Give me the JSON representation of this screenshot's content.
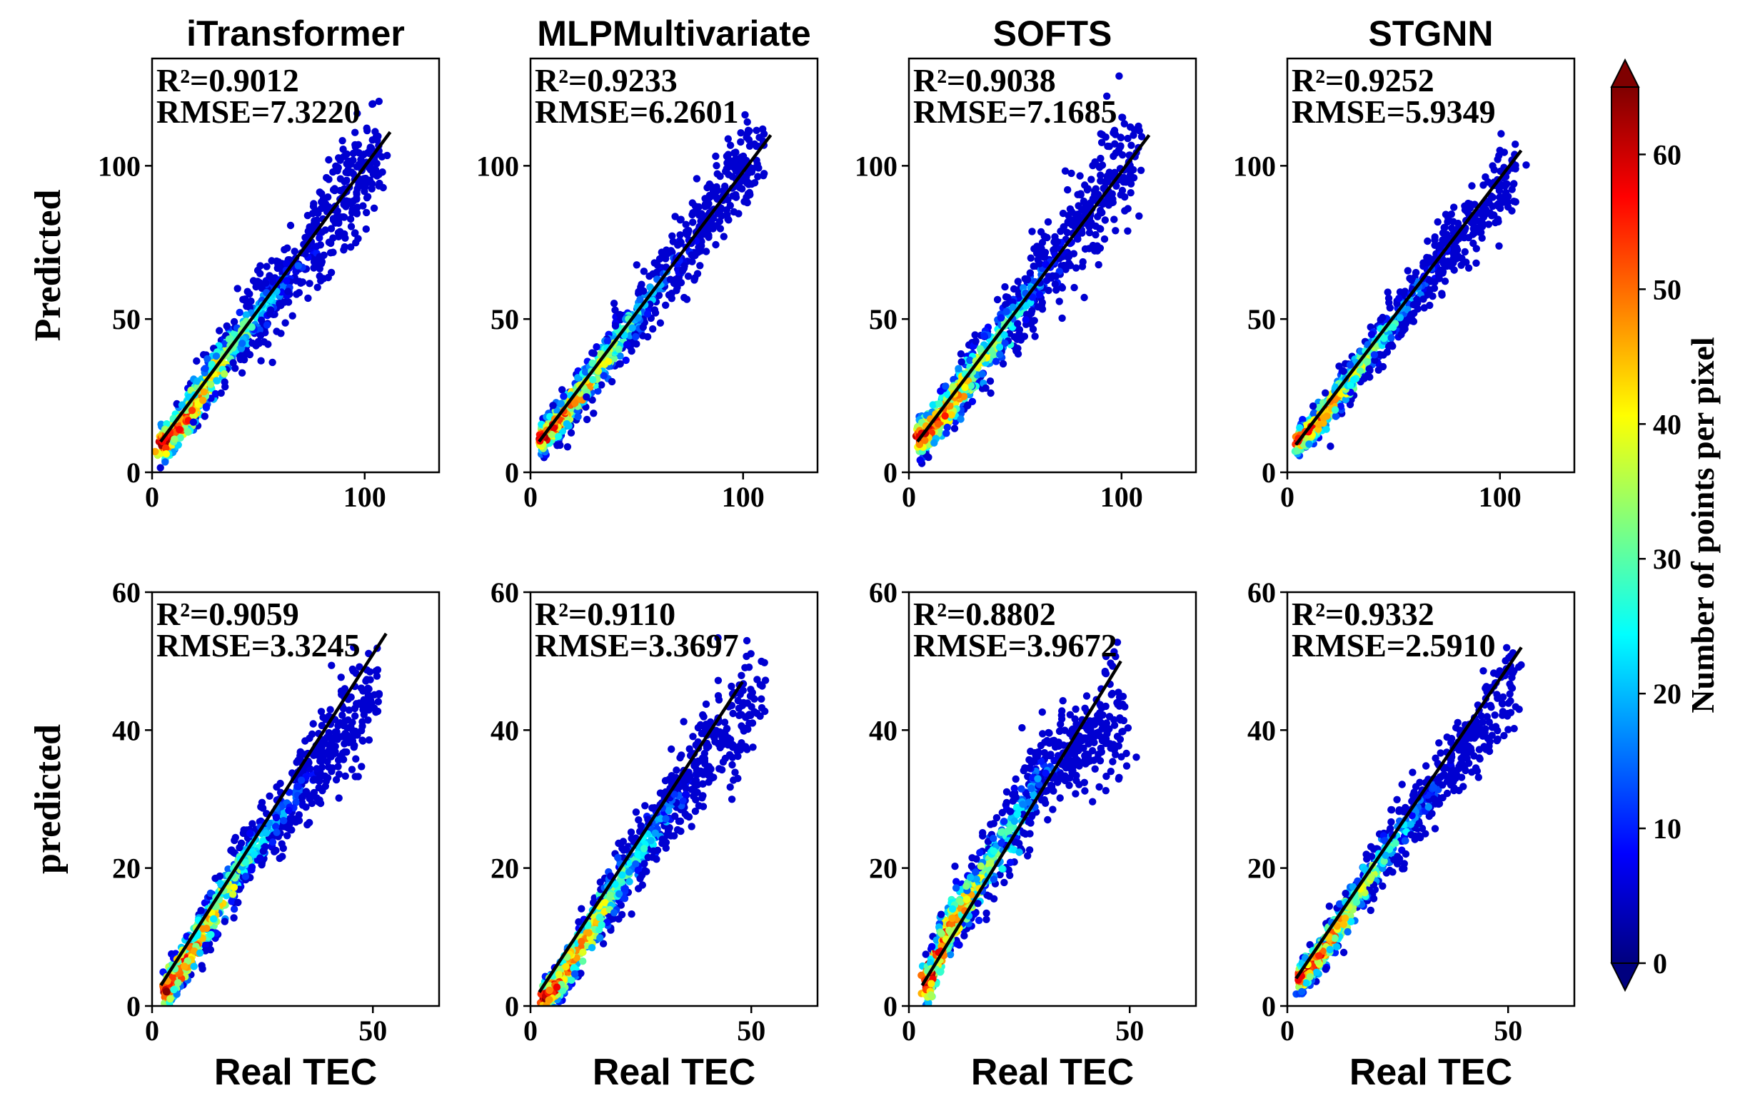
{
  "chart_data": [
    {
      "type": "scatter",
      "row": 0,
      "title": "iTransformer",
      "xlabel": "",
      "ylabel": "Predicted",
      "xlim": [
        0,
        135
      ],
      "ylim": [
        0,
        135
      ],
      "xticks": [
        0,
        100
      ],
      "yticks": [
        0,
        50,
        100
      ],
      "fit_line": {
        "x": [
          4,
          112
        ],
        "y": [
          10,
          111
        ]
      },
      "metrics": {
        "r2": "R²=0.9012",
        "rmse": "RMSE=7.3220"
      },
      "density_ridge": [
        [
          5,
          9
        ],
        [
          14,
          16
        ],
        [
          40,
          44
        ],
        [
          70,
          68
        ],
        [
          100,
          98
        ]
      ],
      "spread": 7
    },
    {
      "type": "scatter",
      "row": 0,
      "title": "MLPMultivariate",
      "xlabel": "",
      "ylabel": "",
      "xlim": [
        0,
        135
      ],
      "ylim": [
        0,
        135
      ],
      "xticks": [
        0,
        100
      ],
      "yticks": [
        0,
        50,
        100
      ],
      "fit_line": {
        "x": [
          4,
          113
        ],
        "y": [
          10,
          110
        ]
      },
      "metrics": {
        "r2": "R²=0.9233",
        "rmse": "RMSE=6.2601"
      },
      "density_ridge": [
        [
          5,
          11
        ],
        [
          15,
          18
        ],
        [
          40,
          42
        ],
        [
          70,
          70
        ],
        [
          100,
          98
        ]
      ],
      "spread": 6
    },
    {
      "type": "scatter",
      "row": 0,
      "title": "SOFTS",
      "xlabel": "",
      "ylabel": "",
      "xlim": [
        0,
        135
      ],
      "ylim": [
        0,
        135
      ],
      "xticks": [
        0,
        100
      ],
      "yticks": [
        0,
        50,
        100
      ],
      "fit_line": {
        "x": [
          4,
          113
        ],
        "y": [
          10,
          110
        ]
      },
      "metrics": {
        "r2": "R²=0.9038",
        "rmse": "RMSE=7.1685"
      },
      "density_ridge": [
        [
          5,
          11
        ],
        [
          15,
          18
        ],
        [
          40,
          42
        ],
        [
          70,
          70
        ],
        [
          100,
          100
        ]
      ],
      "spread": 7
    },
    {
      "type": "scatter",
      "row": 0,
      "title": "STGNN",
      "xlabel": "",
      "ylabel": "",
      "xlim": [
        0,
        135
      ],
      "ylim": [
        0,
        135
      ],
      "xticks": [
        0,
        100
      ],
      "yticks": [
        0,
        50,
        100
      ],
      "fit_line": {
        "x": [
          4,
          110
        ],
        "y": [
          9,
          105
        ]
      },
      "metrics": {
        "r2": "R²=0.9252",
        "rmse": "RMSE=5.9349"
      },
      "density_ridge": [
        [
          5,
          10
        ],
        [
          14,
          16
        ],
        [
          40,
          40
        ],
        [
          70,
          68
        ],
        [
          100,
          92
        ]
      ],
      "spread": 5
    },
    {
      "type": "scatter",
      "row": 1,
      "title": "",
      "xlabel": "Real TEC",
      "ylabel": "predicted",
      "xlim": [
        0,
        65
      ],
      "ylim": [
        0,
        60
      ],
      "xticks": [
        0,
        50
      ],
      "yticks": [
        0,
        20,
        40,
        60
      ],
      "fit_line": {
        "x": [
          2,
          53
        ],
        "y": [
          3,
          54
        ]
      },
      "metrics": {
        "r2": "R²=0.9059",
        "rmse": "RMSE=3.3245"
      },
      "density_ridge": [
        [
          3,
          2
        ],
        [
          7,
          6
        ],
        [
          20,
          20
        ],
        [
          35,
          33
        ],
        [
          48,
          44
        ]
      ],
      "spread": 3
    },
    {
      "type": "scatter",
      "row": 1,
      "title": "",
      "xlabel": "Real TEC",
      "ylabel": "",
      "xlim": [
        0,
        65
      ],
      "ylim": [
        0,
        60
      ],
      "xticks": [
        0,
        50
      ],
      "yticks": [
        0,
        20,
        40,
        60
      ],
      "fit_line": {
        "x": [
          2,
          48
        ],
        "y": [
          2,
          47
        ]
      },
      "metrics": {
        "r2": "R²=0.9110",
        "rmse": "RMSE=3.3697"
      },
      "density_ridge": [
        [
          3,
          1
        ],
        [
          7,
          4
        ],
        [
          20,
          18
        ],
        [
          35,
          32
        ],
        [
          48,
          42
        ]
      ],
      "spread": 3
    },
    {
      "type": "scatter",
      "row": 1,
      "title": "",
      "xlabel": "Real TEC",
      "ylabel": "",
      "xlim": [
        0,
        65
      ],
      "ylim": [
        0,
        60
      ],
      "xticks": [
        0,
        50
      ],
      "yticks": [
        0,
        20,
        40,
        60
      ],
      "fit_line": {
        "x": [
          3,
          48
        ],
        "y": [
          3,
          50
        ]
      },
      "metrics": {
        "r2": "R²=0.8802",
        "rmse": "RMSE=3.9672"
      },
      "density_ridge": [
        [
          4,
          3
        ],
        [
          8,
          10
        ],
        [
          20,
          22
        ],
        [
          30,
          34
        ],
        [
          45,
          40
        ]
      ],
      "spread": 3.5
    },
    {
      "type": "scatter",
      "row": 1,
      "title": "",
      "xlabel": "Real TEC",
      "ylabel": "",
      "xlim": [
        0,
        65
      ],
      "ylim": [
        0,
        60
      ],
      "xticks": [
        0,
        50
      ],
      "yticks": [
        0,
        20,
        40,
        60
      ],
      "fit_line": {
        "x": [
          2,
          53
        ],
        "y": [
          4,
          52
        ]
      },
      "metrics": {
        "r2": "R²=0.9332",
        "rmse": "RMSE=2.5910"
      },
      "density_ridge": [
        [
          3,
          4
        ],
        [
          7,
          7
        ],
        [
          20,
          20
        ],
        [
          35,
          33
        ],
        [
          48,
          44
        ]
      ],
      "spread": 2.5
    }
  ],
  "colorbar": {
    "label": "Number of points per pixel",
    "min": 0,
    "max": 65,
    "ticks": [
      0,
      10,
      20,
      30,
      40,
      50,
      60
    ],
    "colormap": "jet",
    "stops": [
      "#00007f",
      "#0000ff",
      "#007fff",
      "#00ffff",
      "#7fff7f",
      "#ffff00",
      "#ff7f00",
      "#ff0000",
      "#7f0000"
    ]
  }
}
